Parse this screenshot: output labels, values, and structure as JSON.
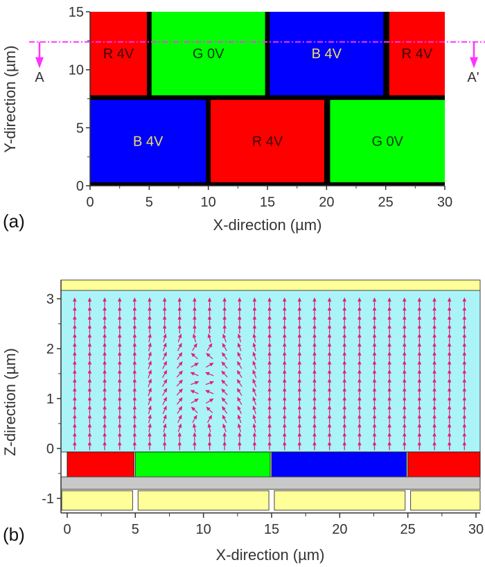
{
  "panel_a": {
    "label": "(a)",
    "xlabel": "X-direction (µm)",
    "ylabel": "Y-direction (µm)",
    "xticks": [
      "0",
      "5",
      "10",
      "15",
      "20",
      "25",
      "30"
    ],
    "yticks": [
      "0",
      "5",
      "10",
      "15"
    ],
    "xlim": [
      0,
      30
    ],
    "ylim": [
      0,
      15
    ],
    "cells": [
      {
        "text": "R 4V",
        "x0": 0,
        "x1": 4.8,
        "y0": 7.8,
        "y1": 15,
        "color": "#ff0000",
        "text_color": "#3a0000"
      },
      {
        "text": "G 0V",
        "x0": 5.2,
        "x1": 14.8,
        "y0": 7.8,
        "y1": 15,
        "color": "#00ff00",
        "text_color": "#003a00"
      },
      {
        "text": "B 4V",
        "x0": 15.2,
        "x1": 24.8,
        "y0": 7.8,
        "y1": 15,
        "color": "#0000ff",
        "text_color": "#f0e060"
      },
      {
        "text": "R 4V",
        "x0": 25.3,
        "x1": 30,
        "y0": 7.8,
        "y1": 15,
        "color": "#ff0000",
        "text_color": "#3a0000"
      },
      {
        "text": "B 4V",
        "x0": 0,
        "x1": 9.8,
        "y0": 0.3,
        "y1": 7.4,
        "color": "#0000ff",
        "text_color": "#f0e060"
      },
      {
        "text": "R 4V",
        "x0": 10.2,
        "x1": 19.8,
        "y0": 0.3,
        "y1": 7.4,
        "color": "#ff0000",
        "text_color": "#3a0000"
      },
      {
        "text": "G 0V",
        "x0": 20.3,
        "x1": 30,
        "y0": 0.3,
        "y1": 7.4,
        "color": "#00ff00",
        "text_color": "#003a00"
      }
    ],
    "cut_line": {
      "y": 12.4,
      "color": "#ff33ff",
      "start_label": "A",
      "end_label": "A'"
    }
  },
  "panel_b": {
    "label": "(b)",
    "xlabel": "X-direction (µm)",
    "ylabel": "Z-direction (µm)",
    "xticks": [
      "0",
      "5",
      "10",
      "15",
      "20",
      "25",
      "30"
    ],
    "zticks": [
      "-1",
      "0",
      "1",
      "2",
      "3"
    ],
    "xlim": [
      0,
      30
    ],
    "colors": {
      "lc": "#aaf4f8",
      "top_electrode": "#ffff99",
      "gray_layer": "#c8c8c8",
      "arrow": "#e0207a"
    },
    "color_filters": [
      {
        "x0": 0,
        "x1": 4.9,
        "color": "#ff0000"
      },
      {
        "x0": 5.0,
        "x1": 14.9,
        "color": "#00ff00"
      },
      {
        "x0": 15.0,
        "x1": 24.9,
        "color": "#0000ff"
      },
      {
        "x0": 25.0,
        "x1": 30.5,
        "color": "#ff0000"
      }
    ],
    "bottom_electrodes": [
      {
        "x0": -0.4,
        "x1": 4.8
      },
      {
        "x0": 5.2,
        "x1": 14.8
      },
      {
        "x0": 15.2,
        "x1": 24.8
      },
      {
        "x0": 25.2,
        "x1": 30.5
      }
    ]
  }
}
